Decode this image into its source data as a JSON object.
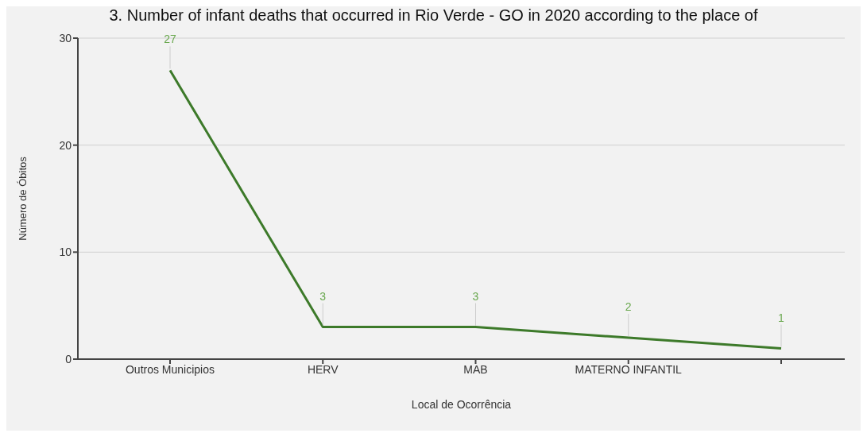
{
  "chart_data": {
    "type": "line",
    "title": "3. Number of infant deaths that occurred in Rio Verde - GO in 2020 according to the place of",
    "xlabel": "Local de Ocorrência",
    "ylabel": "Número de Óbitos",
    "categories": [
      "Outros Municipios",
      "HERV",
      "MAB",
      "MATERNO INFANTIL",
      null
    ],
    "series": [
      {
        "color": "#3d7a2a",
        "values": [
          27,
          3,
          3,
          2,
          1
        ]
      }
    ],
    "ylim": [
      0,
      30
    ],
    "yticks": [
      0,
      10,
      20,
      30
    ],
    "grid": "y",
    "data_labels": true,
    "marker": "none",
    "line_style": "solid",
    "legend": false
  }
}
